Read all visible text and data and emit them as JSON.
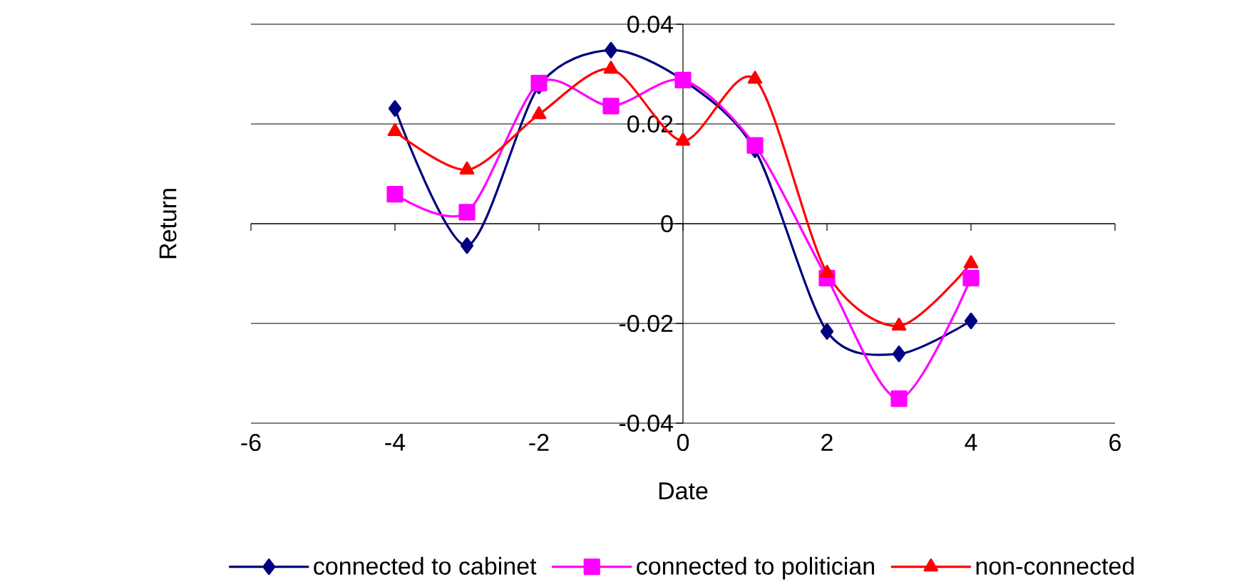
{
  "chart_data": {
    "type": "line",
    "xlabel": "Date",
    "ylabel": "Return",
    "x": [
      -4,
      -3,
      -2,
      -1,
      0,
      1,
      2,
      3,
      4
    ],
    "series": [
      {
        "name": "connected to cabinet",
        "color": "#000080",
        "marker": "diamond",
        "values": [
          0.0231,
          -0.0044,
          0.0276,
          0.0348,
          0.0288,
          0.0148,
          -0.0216,
          -0.0261,
          -0.0195
        ]
      },
      {
        "name": "connected to politician",
        "color": "#ff00ff",
        "marker": "square",
        "values": [
          0.0059,
          0.0023,
          0.0282,
          0.0236,
          0.0288,
          0.0157,
          -0.0109,
          -0.0351,
          -0.0109
        ]
      },
      {
        "name": "non-connected",
        "color": "#ff0000",
        "marker": "triangle",
        "values": [
          0.0185,
          0.0108,
          0.0219,
          0.031,
          0.0166,
          0.029,
          -0.0099,
          -0.0205,
          -0.008
        ]
      }
    ],
    "xlim": [
      -6,
      6
    ],
    "xticks": [
      -6,
      -4,
      -2,
      0,
      2,
      4,
      6
    ],
    "ylim": [
      -0.04,
      0.04
    ],
    "yticks": [
      -0.04,
      -0.02,
      0,
      0.02,
      0.04
    ],
    "grid": "y",
    "legend": "bottom",
    "line_style": "solid"
  }
}
